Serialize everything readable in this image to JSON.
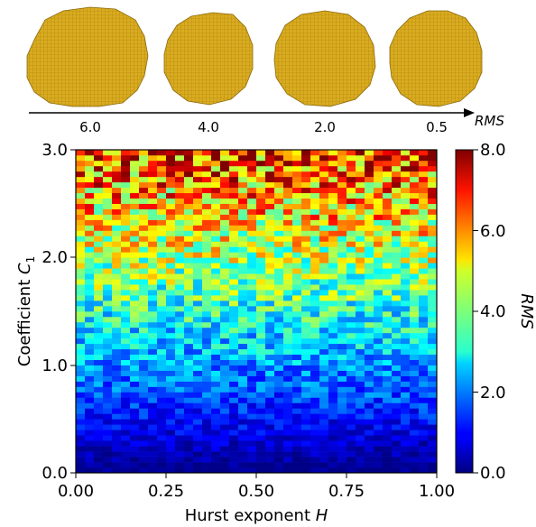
{
  "header": {
    "shape_labels": [
      "6.0",
      "4.0",
      "2.0",
      "0.5"
    ],
    "arrow_label": "RMS"
  },
  "chart_data": {
    "type": "heatmap",
    "xlabel": {
      "text": "Hurst exponent ",
      "var": "H"
    },
    "ylabel": {
      "text": "Coefficient ",
      "var": "C",
      "sub": "1"
    },
    "xlim": [
      0,
      1
    ],
    "ylim": [
      0,
      3
    ],
    "xticks": [
      "0.00",
      "0.25",
      "0.50",
      "0.75",
      "1.00"
    ],
    "yticks": [
      "0.0",
      "1.0",
      "2.0",
      "3.0"
    ],
    "grid": false,
    "colorbar": {
      "label": "RMS",
      "ticks": [
        "0.0",
        "2.0",
        "4.0",
        "6.0",
        "8.0"
      ],
      "range": [
        0,
        8
      ],
      "colormap": "jet"
    },
    "grid_size": {
      "cols": 40,
      "rows": 60
    },
    "value_model": "RMS ≈ 2.2·C1 (roughly independent of H) with noise growing with C1; max ≈ 8 near C1 = 3"
  },
  "colors": {
    "shape_fill": "#d9ab1f",
    "shape_stroke": "#8a6a0c"
  }
}
